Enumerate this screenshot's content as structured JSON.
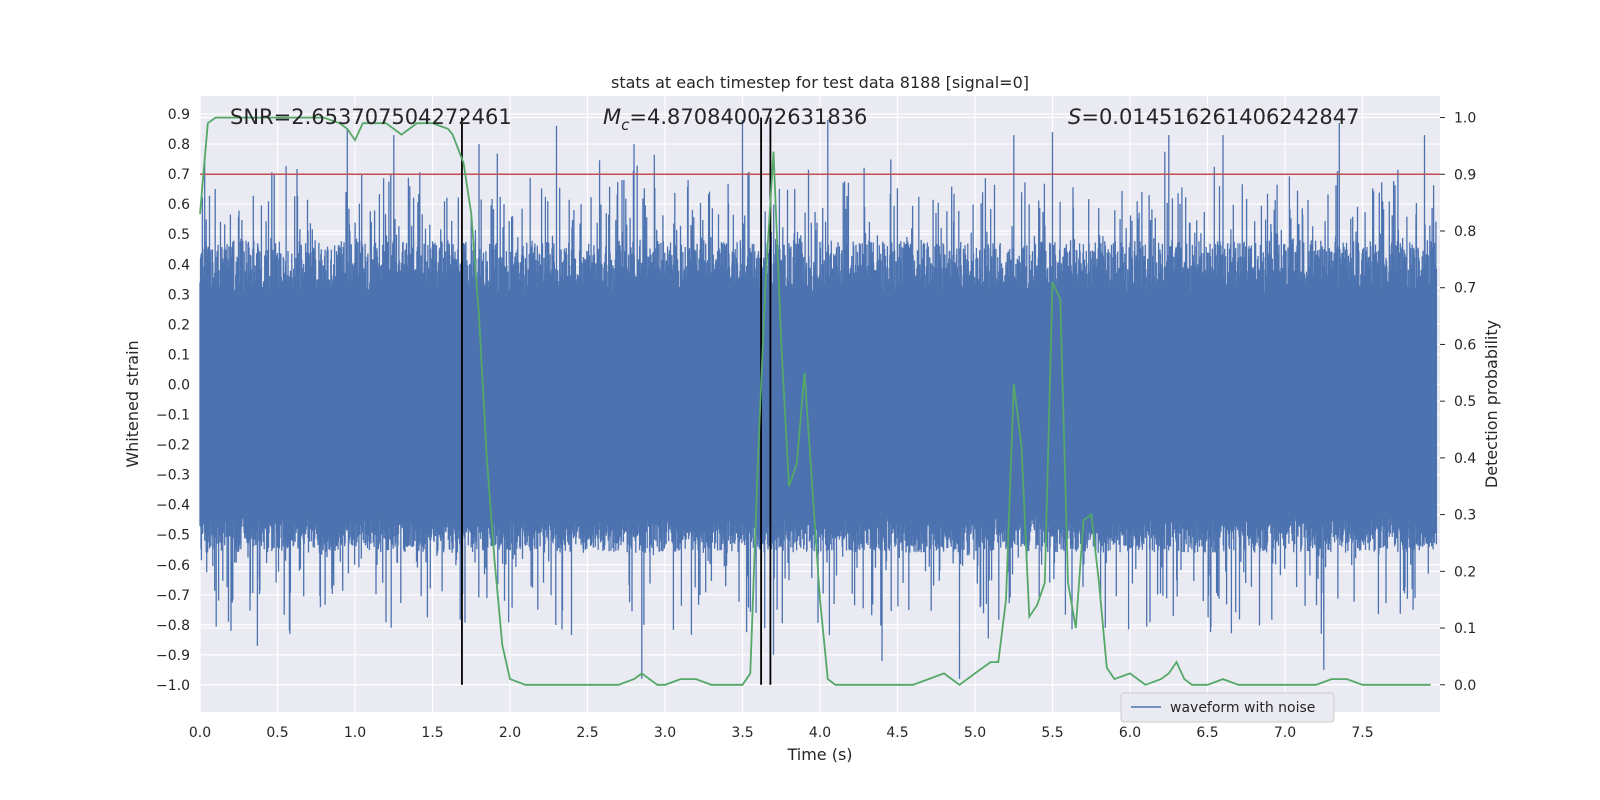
{
  "chart_data": {
    "type": "line",
    "title": "stats at each timestep for test data 8188 [signal=0]",
    "xlabel": "Time (s)",
    "ylabel_left": "Whitened strain",
    "ylabel_right": "Detection probability",
    "xlim": [
      0.0,
      8.0
    ],
    "ylim_left": [
      -1.09,
      0.96
    ],
    "ylim_right": [
      -0.048,
      1.038
    ],
    "x_ticks": [
      "0.0",
      "0.5",
      "1.0",
      "1.5",
      "2.0",
      "2.5",
      "3.0",
      "3.5",
      "4.0",
      "4.5",
      "5.0",
      "5.5",
      "6.0",
      "6.5",
      "7.0",
      "7.5"
    ],
    "y_ticks_left": [
      "0.9",
      "0.8",
      "0.7",
      "0.6",
      "0.5",
      "0.4",
      "0.3",
      "0.2",
      "0.1",
      "0.0",
      "−0.1",
      "−0.2",
      "−0.3",
      "−0.4",
      "−0.5",
      "−0.6",
      "−0.7",
      "−0.8",
      "−0.9",
      "−1.0"
    ],
    "y_ticks_right": [
      "1.0",
      "0.9",
      "0.8",
      "0.7",
      "0.6",
      "0.5",
      "0.4",
      "0.3",
      "0.2",
      "0.1",
      "0.0"
    ],
    "grid": true,
    "legend": {
      "placement": "lower-right",
      "entries": [
        "waveform with noise"
      ]
    },
    "annotations": {
      "snr": "SNR=2.653707504272461",
      "mc_symbol": "M",
      "mc_subscript": "c",
      "mc_value": "=4.870840072631836",
      "s_symbol": "S",
      "s_value": "=0.014516261406242847"
    },
    "colors": {
      "waveform": "#4c72b0",
      "probability": "#55a868",
      "threshold": "#c44e52",
      "event_lines": "#000000",
      "plot_background": "#eaeaf2",
      "grid": "#ffffff"
    },
    "threshold": {
      "axis": "right",
      "value": 0.9
    },
    "event_lines_x": [
      1.69,
      3.62,
      3.68
    ],
    "series": [
      {
        "name": "waveform with noise",
        "axis": "left",
        "description": "dense noisy strain; envelope approx ±0.3 core with spikes up to 0.88 and down to -0.98",
        "spike_samples": [
          {
            "x": 0.03,
            "y": 0.74
          },
          {
            "x": 0.2,
            "y": -0.82
          },
          {
            "x": 0.37,
            "y": -0.87
          },
          {
            "x": 0.58,
            "y": -0.83
          },
          {
            "x": 0.95,
            "y": 0.85
          },
          {
            "x": 1.25,
            "y": 0.83
          },
          {
            "x": 1.8,
            "y": 0.8
          },
          {
            "x": 2.3,
            "y": 0.86
          },
          {
            "x": 2.8,
            "y": 0.8
          },
          {
            "x": 2.85,
            "y": -0.98
          },
          {
            "x": 3.5,
            "y": 0.88
          },
          {
            "x": 3.7,
            "y": -0.9
          },
          {
            "x": 4.05,
            "y": 0.88
          },
          {
            "x": 4.4,
            "y": -0.92
          },
          {
            "x": 4.9,
            "y": -0.98
          },
          {
            "x": 5.25,
            "y": 0.83
          },
          {
            "x": 5.5,
            "y": 0.84
          },
          {
            "x": 6.25,
            "y": 0.83
          },
          {
            "x": 6.6,
            "y": 0.83
          },
          {
            "x": 7.25,
            "y": -0.95
          },
          {
            "x": 7.35,
            "y": 0.87
          },
          {
            "x": 7.9,
            "y": 0.83
          }
        ]
      },
      {
        "name": "",
        "axis": "right",
        "x": [
          0.0,
          0.05,
          0.1,
          0.2,
          0.4,
          0.6,
          0.8,
          0.9,
          0.95,
          1.0,
          1.05,
          1.1,
          1.2,
          1.25,
          1.3,
          1.4,
          1.5,
          1.6,
          1.63,
          1.7,
          1.75,
          1.8,
          1.85,
          1.9,
          1.95,
          2.0,
          2.1,
          2.3,
          2.5,
          2.7,
          2.8,
          2.85,
          2.9,
          2.95,
          3.0,
          3.1,
          3.2,
          3.3,
          3.5,
          3.55,
          3.6,
          3.65,
          3.7,
          3.75,
          3.8,
          3.85,
          3.9,
          4.0,
          4.05,
          4.1,
          4.2,
          4.4,
          4.6,
          4.8,
          4.85,
          4.9,
          5.0,
          5.1,
          5.15,
          5.2,
          5.25,
          5.3,
          5.35,
          5.4,
          5.45,
          5.5,
          5.55,
          5.6,
          5.65,
          5.7,
          5.75,
          5.8,
          5.85,
          5.9,
          6.0,
          6.1,
          6.2,
          6.25,
          6.3,
          6.35,
          6.4,
          6.5,
          6.6,
          6.7,
          6.8,
          7.0,
          7.2,
          7.3,
          7.4,
          7.5,
          7.7,
          7.94
        ],
        "y": [
          0.83,
          0.99,
          1.0,
          1.0,
          1.0,
          1.0,
          1.0,
          0.99,
          0.98,
          0.96,
          0.99,
          0.99,
          0.99,
          0.98,
          0.97,
          0.99,
          0.99,
          0.98,
          0.97,
          0.92,
          0.83,
          0.65,
          0.4,
          0.22,
          0.07,
          0.01,
          0.0,
          0.0,
          0.0,
          0.0,
          0.01,
          0.02,
          0.01,
          0.0,
          0.0,
          0.01,
          0.01,
          0.0,
          0.0,
          0.02,
          0.4,
          0.72,
          0.94,
          0.6,
          0.35,
          0.39,
          0.55,
          0.15,
          0.01,
          0.0,
          0.0,
          0.0,
          0.0,
          0.02,
          0.01,
          0.0,
          0.02,
          0.04,
          0.04,
          0.15,
          0.53,
          0.42,
          0.12,
          0.14,
          0.18,
          0.71,
          0.68,
          0.18,
          0.1,
          0.29,
          0.3,
          0.18,
          0.03,
          0.01,
          0.02,
          0.0,
          0.01,
          0.02,
          0.04,
          0.01,
          0.0,
          0.0,
          0.01,
          0.0,
          0.0,
          0.0,
          0.0,
          0.01,
          0.01,
          0.0,
          0.0,
          0.0
        ]
      }
    ]
  }
}
